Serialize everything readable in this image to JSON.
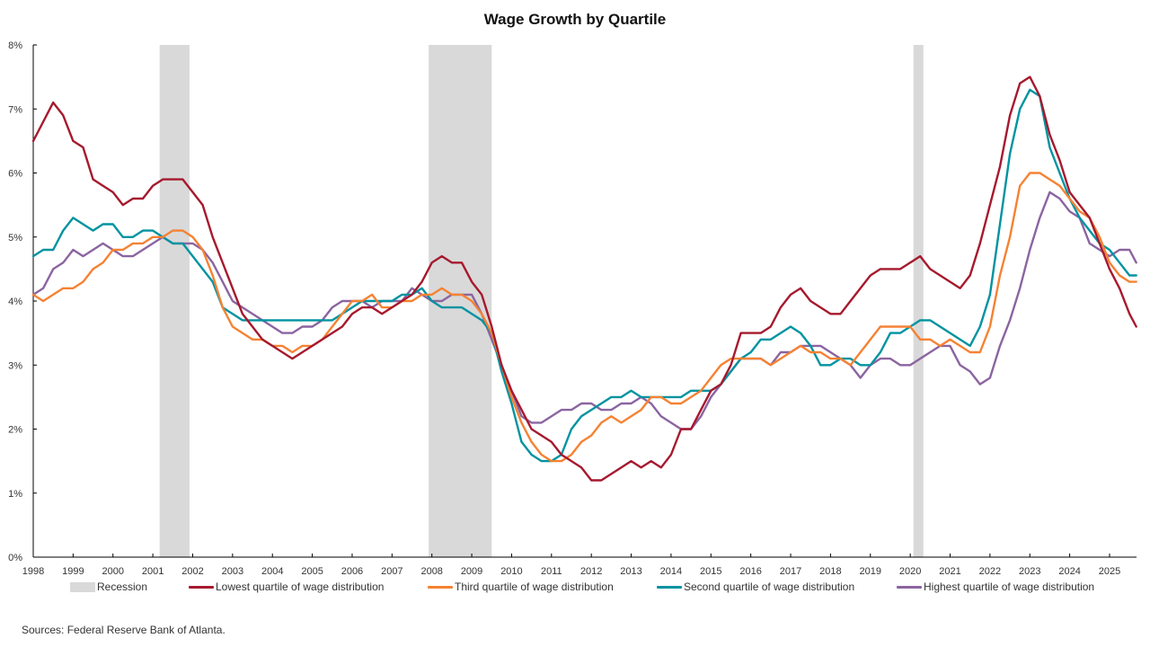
{
  "chart_data": {
    "type": "line",
    "title": "Wage Growth by Quartile",
    "xlabel": "",
    "ylabel": "",
    "xlim": [
      1998,
      2025.75
    ],
    "ylim": [
      0,
      8
    ],
    "y_ticks": [
      0,
      1,
      2,
      3,
      4,
      5,
      6,
      7,
      8
    ],
    "y_tick_labels": [
      "0%",
      "1%",
      "2%",
      "3%",
      "4%",
      "5%",
      "6%",
      "7%",
      "8%"
    ],
    "x_ticks": [
      1998,
      1999,
      2000,
      2001,
      2002,
      2003,
      2004,
      2005,
      2006,
      2007,
      2008,
      2009,
      2010,
      2011,
      2012,
      2013,
      2014,
      2015,
      2016,
      2017,
      2018,
      2019,
      2020,
      2021,
      2022,
      2023,
      2024,
      2025
    ],
    "x_tick_labels": [
      "1998",
      "1999",
      "2000",
      "2001",
      "2002",
      "2003",
      "2004",
      "2005",
      "2006",
      "2007",
      "2008",
      "2009",
      "2010",
      "2011",
      "2012",
      "2013",
      "2014",
      "2015",
      "2016",
      "2017",
      "2018",
      "2019",
      "2020",
      "2021",
      "2022",
      "2023",
      "2024",
      "2025"
    ],
    "grid": false,
    "legend_position": "bottom",
    "recessions": [
      {
        "start": 2001.17,
        "end": 2001.92
      },
      {
        "start": 2007.92,
        "end": 2009.5
      },
      {
        "start": 2020.08,
        "end": 2020.33
      }
    ],
    "x": [
      1998.0,
      1998.25,
      1998.5,
      1998.75,
      1999.0,
      1999.25,
      1999.5,
      1999.75,
      2000.0,
      2000.25,
      2000.5,
      2000.75,
      2001.0,
      2001.25,
      2001.5,
      2001.75,
      2002.0,
      2002.25,
      2002.5,
      2002.75,
      2003.0,
      2003.25,
      2003.5,
      2003.75,
      2004.0,
      2004.25,
      2004.5,
      2004.75,
      2005.0,
      2005.25,
      2005.5,
      2005.75,
      2006.0,
      2006.25,
      2006.5,
      2006.75,
      2007.0,
      2007.25,
      2007.5,
      2007.75,
      2008.0,
      2008.25,
      2008.5,
      2008.75,
      2009.0,
      2009.25,
      2009.5,
      2009.75,
      2010.0,
      2010.25,
      2010.5,
      2010.75,
      2011.0,
      2011.25,
      2011.5,
      2011.75,
      2012.0,
      2012.25,
      2012.5,
      2012.75,
      2013.0,
      2013.25,
      2013.5,
      2013.75,
      2014.0,
      2014.25,
      2014.5,
      2014.75,
      2015.0,
      2015.25,
      2015.5,
      2015.75,
      2016.0,
      2016.25,
      2016.5,
      2016.75,
      2017.0,
      2017.25,
      2017.5,
      2017.75,
      2018.0,
      2018.25,
      2018.5,
      2018.75,
      2019.0,
      2019.25,
      2019.5,
      2019.75,
      2020.0,
      2020.25,
      2020.5,
      2020.75,
      2021.0,
      2021.25,
      2021.5,
      2021.75,
      2022.0,
      2022.25,
      2022.5,
      2022.75,
      2023.0,
      2023.25,
      2023.5,
      2023.75,
      2024.0,
      2024.25,
      2024.5,
      2024.75,
      2025.0,
      2025.25,
      2025.5,
      2025.67
    ],
    "series": [
      {
        "name": "Lowest quartile of wage distribution",
        "color": "#a6192e",
        "values": [
          6.5,
          6.8,
          7.1,
          6.9,
          6.5,
          6.4,
          5.9,
          5.8,
          5.7,
          5.5,
          5.6,
          5.6,
          5.8,
          5.9,
          5.9,
          5.9,
          5.7,
          5.5,
          5.0,
          4.6,
          4.2,
          3.8,
          3.6,
          3.4,
          3.3,
          3.2,
          3.1,
          3.2,
          3.3,
          3.4,
          3.5,
          3.6,
          3.8,
          3.9,
          3.9,
          3.8,
          3.9,
          4.0,
          4.1,
          4.3,
          4.6,
          4.7,
          4.6,
          4.6,
          4.3,
          4.1,
          3.6,
          3.0,
          2.6,
          2.3,
          2.0,
          1.9,
          1.8,
          1.6,
          1.5,
          1.4,
          1.2,
          1.2,
          1.3,
          1.4,
          1.5,
          1.4,
          1.5,
          1.4,
          1.6,
          2.0,
          2.0,
          2.3,
          2.6,
          2.7,
          3.0,
          3.5,
          3.5,
          3.5,
          3.6,
          3.9,
          4.1,
          4.2,
          4.0,
          3.9,
          3.8,
          3.8,
          4.0,
          4.2,
          4.4,
          4.5,
          4.5,
          4.5,
          4.6,
          4.7,
          4.5,
          4.4,
          4.3,
          4.2,
          4.4,
          4.9,
          5.5,
          6.1,
          6.9,
          7.4,
          7.5,
          7.2,
          6.6,
          6.2,
          5.7,
          5.5,
          5.3,
          4.9,
          4.5,
          4.2,
          3.8,
          3.6
        ]
      },
      {
        "name": "Third quartile of wage distribution",
        "color": "#f58233",
        "values": [
          4.1,
          4.0,
          4.1,
          4.2,
          4.2,
          4.3,
          4.5,
          4.6,
          4.8,
          4.8,
          4.9,
          4.9,
          5.0,
          5.0,
          5.1,
          5.1,
          5.0,
          4.8,
          4.4,
          3.9,
          3.6,
          3.5,
          3.4,
          3.4,
          3.3,
          3.3,
          3.2,
          3.3,
          3.3,
          3.4,
          3.6,
          3.8,
          4.0,
          4.0,
          4.1,
          3.9,
          3.9,
          4.0,
          4.0,
          4.1,
          4.1,
          4.2,
          4.1,
          4.1,
          4.0,
          3.8,
          3.5,
          3.0,
          2.5,
          2.1,
          1.8,
          1.6,
          1.5,
          1.5,
          1.6,
          1.8,
          1.9,
          2.1,
          2.2,
          2.1,
          2.2,
          2.3,
          2.5,
          2.5,
          2.4,
          2.4,
          2.5,
          2.6,
          2.8,
          3.0,
          3.1,
          3.1,
          3.1,
          3.1,
          3.0,
          3.1,
          3.2,
          3.3,
          3.2,
          3.2,
          3.1,
          3.1,
          3.0,
          3.2,
          3.4,
          3.6,
          3.6,
          3.6,
          3.6,
          3.4,
          3.4,
          3.3,
          3.4,
          3.3,
          3.2,
          3.2,
          3.6,
          4.4,
          5.0,
          5.8,
          6.0,
          6.0,
          5.9,
          5.8,
          5.6,
          5.4,
          5.3,
          5.0,
          4.6,
          4.4,
          4.3,
          4.3
        ]
      },
      {
        "name": "Second quartile of wage distribution",
        "color": "#0093a0",
        "values": [
          4.7,
          4.8,
          4.8,
          5.1,
          5.3,
          5.2,
          5.1,
          5.2,
          5.2,
          5.0,
          5.0,
          5.1,
          5.1,
          5.0,
          4.9,
          4.9,
          4.7,
          4.5,
          4.3,
          3.9,
          3.8,
          3.7,
          3.7,
          3.7,
          3.7,
          3.7,
          3.7,
          3.7,
          3.7,
          3.7,
          3.7,
          3.8,
          3.9,
          4.0,
          4.0,
          4.0,
          4.0,
          4.1,
          4.1,
          4.2,
          4.0,
          3.9,
          3.9,
          3.9,
          3.8,
          3.7,
          3.5,
          2.9,
          2.4,
          1.8,
          1.6,
          1.5,
          1.5,
          1.6,
          2.0,
          2.2,
          2.3,
          2.4,
          2.5,
          2.5,
          2.6,
          2.5,
          2.5,
          2.5,
          2.5,
          2.5,
          2.6,
          2.6,
          2.6,
          2.7,
          2.9,
          3.1,
          3.2,
          3.4,
          3.4,
          3.5,
          3.6,
          3.5,
          3.3,
          3.0,
          3.0,
          3.1,
          3.1,
          3.0,
          3.0,
          3.2,
          3.5,
          3.5,
          3.6,
          3.7,
          3.7,
          3.6,
          3.5,
          3.4,
          3.3,
          3.6,
          4.1,
          5.2,
          6.3,
          7.0,
          7.3,
          7.2,
          6.4,
          6.0,
          5.6,
          5.3,
          5.1,
          4.9,
          4.8,
          4.6,
          4.4,
          4.4
        ]
      },
      {
        "name": "Highest quartile of wage distribution",
        "color": "#8b64a0",
        "values": [
          4.1,
          4.2,
          4.5,
          4.6,
          4.8,
          4.7,
          4.8,
          4.9,
          4.8,
          4.7,
          4.7,
          4.8,
          4.9,
          5.0,
          4.9,
          4.9,
          4.9,
          4.8,
          4.6,
          4.3,
          4.0,
          3.9,
          3.8,
          3.7,
          3.6,
          3.5,
          3.5,
          3.6,
          3.6,
          3.7,
          3.9,
          4.0,
          4.0,
          4.0,
          3.9,
          4.0,
          4.0,
          4.0,
          4.2,
          4.1,
          4.0,
          4.0,
          4.1,
          4.1,
          4.1,
          3.8,
          3.4,
          3.0,
          2.6,
          2.2,
          2.1,
          2.1,
          2.2,
          2.3,
          2.3,
          2.4,
          2.4,
          2.3,
          2.3,
          2.4,
          2.4,
          2.5,
          2.4,
          2.2,
          2.1,
          2.0,
          2.0,
          2.2,
          2.5,
          2.7,
          2.9,
          3.1,
          3.1,
          3.1,
          3.0,
          3.2,
          3.2,
          3.3,
          3.3,
          3.3,
          3.2,
          3.1,
          3.0,
          2.8,
          3.0,
          3.1,
          3.1,
          3.0,
          3.0,
          3.1,
          3.2,
          3.3,
          3.3,
          3.0,
          2.9,
          2.7,
          2.8,
          3.3,
          3.7,
          4.2,
          4.8,
          5.3,
          5.7,
          5.6,
          5.4,
          5.3,
          4.9,
          4.8,
          4.7,
          4.8,
          4.8,
          4.6
        ]
      }
    ]
  },
  "legend": {
    "recession_label": "Recession",
    "recession_color": "#d9d9d9"
  },
  "source_note": "Sources: Federal Reserve Bank of Atlanta."
}
